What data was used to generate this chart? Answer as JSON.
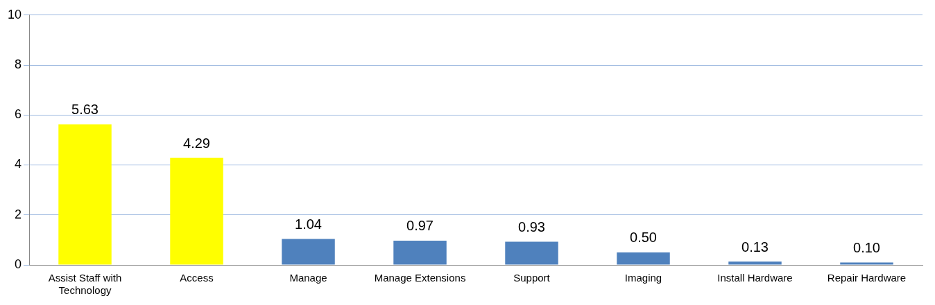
{
  "chart_data": {
    "type": "bar",
    "categories": [
      "Assist Staff with Technology",
      "Access",
      "Manage",
      "Manage Extensions",
      "Support",
      "Imaging",
      "Install Hardware",
      "Repair Hardware"
    ],
    "values": [
      5.63,
      4.29,
      1.04,
      0.97,
      0.93,
      0.5,
      0.13,
      0.1
    ],
    "colors": [
      "#ffff00",
      "#ffff00",
      "#4f81bd",
      "#4f81bd",
      "#4f81bd",
      "#4f81bd",
      "#4f81bd",
      "#4f81bd"
    ],
    "value_labels": [
      "5.63",
      "4.29",
      "1.04",
      "0.97",
      "0.93",
      "0.50",
      "0.13",
      "0.10"
    ],
    "ylim": [
      0,
      10
    ],
    "yticks": [
      0,
      2,
      4,
      6,
      8,
      10
    ],
    "grid": "y"
  }
}
